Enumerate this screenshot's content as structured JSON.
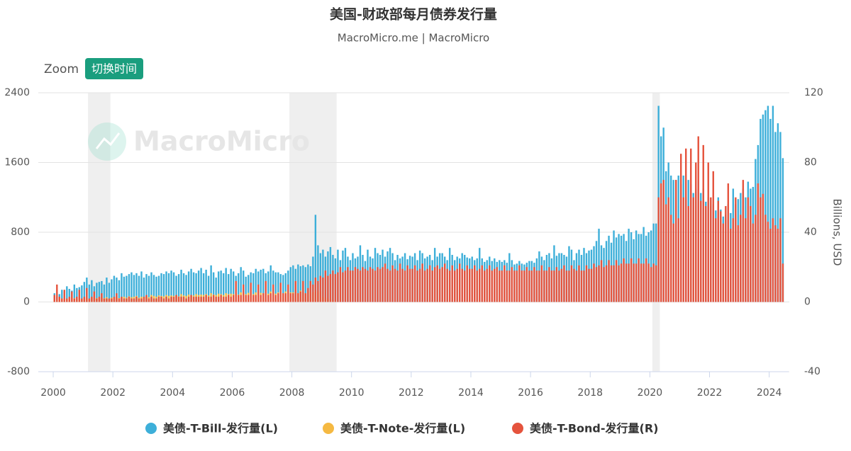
{
  "chart_data": {
    "type": "bar",
    "title": "美国-财政部每月债券发行量",
    "subtitle": "MacroMicro.me | MacroMicro",
    "watermark": "MacroMicro",
    "zoom_label": "Zoom",
    "zoom_button": "切换时间",
    "y2label": "Billions, USD",
    "legend": "bottom",
    "grid": true,
    "xlim": [
      1999.5,
      2024.65
    ],
    "xticks": [
      2000,
      2002,
      2004,
      2006,
      2008,
      2010,
      2012,
      2014,
      2016,
      2018,
      2020,
      2022,
      2024
    ],
    "ylim": [
      -800,
      2400
    ],
    "yticks": [
      -800,
      0,
      800,
      1600,
      2400
    ],
    "y2lim": [
      -40,
      120
    ],
    "y2ticks": [
      -40,
      0,
      40,
      80,
      120
    ],
    "recessions": [
      [
        "2001-03",
        "2001-11"
      ],
      [
        "2007-12",
        "2009-06"
      ],
      [
        "2020-02",
        "2020-04"
      ]
    ],
    "x": [
      "2000-01",
      "2000-02",
      "2000-03",
      "2000-04",
      "2000-05",
      "2000-06",
      "2000-07",
      "2000-08",
      "2000-09",
      "2000-10",
      "2000-11",
      "2000-12",
      "2001-01",
      "2001-02",
      "2001-03",
      "2001-04",
      "2001-05",
      "2001-06",
      "2001-07",
      "2001-08",
      "2001-09",
      "2001-10",
      "2001-11",
      "2001-12",
      "2002-01",
      "2002-02",
      "2002-03",
      "2002-04",
      "2002-05",
      "2002-06",
      "2002-07",
      "2002-08",
      "2002-09",
      "2002-10",
      "2002-11",
      "2002-12",
      "2003-01",
      "2003-02",
      "2003-03",
      "2003-04",
      "2003-05",
      "2003-06",
      "2003-07",
      "2003-08",
      "2003-09",
      "2003-10",
      "2003-11",
      "2003-12",
      "2004-01",
      "2004-02",
      "2004-03",
      "2004-04",
      "2004-05",
      "2004-06",
      "2004-07",
      "2004-08",
      "2004-09",
      "2004-10",
      "2004-11",
      "2004-12",
      "2005-01",
      "2005-02",
      "2005-03",
      "2005-04",
      "2005-05",
      "2005-06",
      "2005-07",
      "2005-08",
      "2005-09",
      "2005-10",
      "2005-11",
      "2005-12",
      "2006-01",
      "2006-02",
      "2006-03",
      "2006-04",
      "2006-05",
      "2006-06",
      "2006-07",
      "2006-08",
      "2006-09",
      "2006-10",
      "2006-11",
      "2006-12",
      "2007-01",
      "2007-02",
      "2007-03",
      "2007-04",
      "2007-05",
      "2007-06",
      "2007-07",
      "2007-08",
      "2007-09",
      "2007-10",
      "2007-11",
      "2007-12",
      "2008-01",
      "2008-02",
      "2008-03",
      "2008-04",
      "2008-05",
      "2008-06",
      "2008-07",
      "2008-08",
      "2008-09",
      "2008-10",
      "2008-11",
      "2008-12",
      "2009-01",
      "2009-02",
      "2009-03",
      "2009-04",
      "2009-05",
      "2009-06",
      "2009-07",
      "2009-08",
      "2009-09",
      "2009-10",
      "2009-11",
      "2009-12",
      "2010-01",
      "2010-02",
      "2010-03",
      "2010-04",
      "2010-05",
      "2010-06",
      "2010-07",
      "2010-08",
      "2010-09",
      "2010-10",
      "2010-11",
      "2010-12",
      "2011-01",
      "2011-02",
      "2011-03",
      "2011-04",
      "2011-05",
      "2011-06",
      "2011-07",
      "2011-08",
      "2011-09",
      "2011-10",
      "2011-11",
      "2011-12",
      "2012-01",
      "2012-02",
      "2012-03",
      "2012-04",
      "2012-05",
      "2012-06",
      "2012-07",
      "2012-08",
      "2012-09",
      "2012-10",
      "2012-11",
      "2012-12",
      "2013-01",
      "2013-02",
      "2013-03",
      "2013-04",
      "2013-05",
      "2013-06",
      "2013-07",
      "2013-08",
      "2013-09",
      "2013-10",
      "2013-11",
      "2013-12",
      "2014-01",
      "2014-02",
      "2014-03",
      "2014-04",
      "2014-05",
      "2014-06",
      "2014-07",
      "2014-08",
      "2014-09",
      "2014-10",
      "2014-11",
      "2014-12",
      "2015-01",
      "2015-02",
      "2015-03",
      "2015-04",
      "2015-05",
      "2015-06",
      "2015-07",
      "2015-08",
      "2015-09",
      "2015-10",
      "2015-11",
      "2015-12",
      "2016-01",
      "2016-02",
      "2016-03",
      "2016-04",
      "2016-05",
      "2016-06",
      "2016-07",
      "2016-08",
      "2016-09",
      "2016-10",
      "2016-11",
      "2016-12",
      "2017-01",
      "2017-02",
      "2017-03",
      "2017-04",
      "2017-05",
      "2017-06",
      "2017-07",
      "2017-08",
      "2017-09",
      "2017-10",
      "2017-11",
      "2017-12",
      "2018-01",
      "2018-02",
      "2018-03",
      "2018-04",
      "2018-05",
      "2018-06",
      "2018-07",
      "2018-08",
      "2018-09",
      "2018-10",
      "2018-11",
      "2018-12",
      "2019-01",
      "2019-02",
      "2019-03",
      "2019-04",
      "2019-05",
      "2019-06",
      "2019-07",
      "2019-08",
      "2019-09",
      "2019-10",
      "2019-11",
      "2019-12",
      "2020-01",
      "2020-02",
      "2020-03",
      "2020-04",
      "2020-05",
      "2020-06",
      "2020-07",
      "2020-08",
      "2020-09",
      "2020-10",
      "2020-11",
      "2020-12",
      "2021-01",
      "2021-02",
      "2021-03",
      "2021-04",
      "2021-05",
      "2021-06",
      "2021-07",
      "2021-08",
      "2021-09",
      "2021-10",
      "2021-11",
      "2021-12",
      "2022-01",
      "2022-02",
      "2022-03",
      "2022-04",
      "2022-05",
      "2022-06",
      "2022-07",
      "2022-08",
      "2022-09",
      "2022-10",
      "2022-11",
      "2022-12",
      "2023-01",
      "2023-02",
      "2023-03",
      "2023-04",
      "2023-05",
      "2023-06",
      "2023-07",
      "2023-08",
      "2023-09",
      "2023-10",
      "2023-11",
      "2023-12",
      "2024-01",
      "2024-02",
      "2024-03",
      "2024-04",
      "2024-05",
      "2024-06"
    ],
    "series": [
      {
        "name": "美债-T-Bill-发行量(L)",
        "color": "#3dafd9",
        "axis": "y",
        "values": [
          100,
          60,
          90,
          140,
          120,
          180,
          150,
          130,
          200,
          160,
          170,
          190,
          230,
          280,
          200,
          250,
          180,
          220,
          230,
          240,
          200,
          280,
          220,
          260,
          300,
          280,
          250,
          330,
          290,
          300,
          320,
          340,
          310,
          330,
          300,
          350,
          280,
          320,
          300,
          340,
          310,
          290,
          300,
          330,
          320,
          350,
          330,
          360,
          340,
          300,
          320,
          370,
          330,
          310,
          350,
          380,
          340,
          330,
          360,
          390,
          330,
          370,
          300,
          420,
          340,
          280,
          350,
          360,
          330,
          390,
          320,
          380,
          350,
          300,
          330,
          400,
          360,
          290,
          310,
          340,
          330,
          380,
          350,
          370,
          380,
          330,
          350,
          420,
          360,
          340,
          340,
          320,
          310,
          330,
          360,
          400,
          420,
          380,
          430,
          410,
          420,
          400,
          430,
          410,
          520,
          1000,
          650,
          560,
          600,
          520,
          580,
          630,
          540,
          500,
          600,
          480,
          590,
          620,
          520,
          480,
          560,
          500,
          520,
          650,
          540,
          470,
          600,
          520,
          500,
          620,
          560,
          540,
          600,
          520,
          580,
          620,
          560,
          480,
          540,
          500,
          520,
          560,
          490,
          530,
          520,
          560,
          480,
          590,
          560,
          500,
          520,
          540,
          480,
          620,
          520,
          560,
          560,
          520,
          480,
          620,
          540,
          480,
          520,
          500,
          560,
          540,
          510,
          500,
          520,
          480,
          500,
          620,
          500,
          460,
          480,
          520,
          470,
          500,
          460,
          480,
          460,
          480,
          450,
          560,
          480,
          430,
          440,
          470,
          440,
          430,
          450,
          470,
          470,
          450,
          500,
          580,
          520,
          480,
          540,
          560,
          500,
          650,
          530,
          560,
          560,
          540,
          520,
          640,
          600,
          480,
          560,
          600,
          540,
          620,
          560,
          590,
          600,
          640,
          700,
          840,
          650,
          620,
          700,
          760,
          680,
          820,
          740,
          780,
          760,
          780,
          700,
          840,
          800,
          720,
          820,
          780,
          780,
          860,
          760,
          800,
          820,
          900,
          900,
          2250,
          1900,
          2000,
          1500,
          1600,
          1450,
          1400,
          1400,
          1450,
          1350,
          1450,
          1200,
          1400,
          1350,
          1250,
          1300,
          1400,
          1250,
          1300,
          1150,
          1200,
          1100,
          1120,
          1050,
          1200,
          1060,
          980,
          1000,
          1120,
          1020,
          1300,
          1120,
          1180,
          1250,
          1300,
          1200,
          1380,
          1300,
          1320,
          1640,
          1800,
          2100,
          2150,
          2200,
          2250,
          2100,
          2250,
          1950,
          2050,
          1950,
          1650
        ]
      },
      {
        "name": "美债-T-Note-发行量(L)",
        "color": "#f5b942",
        "axis": "y",
        "values": [
          20,
          30,
          25,
          40,
          35,
          30,
          50,
          40,
          45,
          30,
          40,
          35,
          45,
          40,
          35,
          50,
          40,
          45,
          50,
          40,
          45,
          55,
          40,
          50,
          50,
          60,
          45,
          55,
          60,
          50,
          65,
          55,
          60,
          70,
          50,
          60,
          60,
          70,
          55,
          80,
          70,
          60,
          75,
          70,
          65,
          80,
          70,
          75,
          70,
          80,
          65,
          90,
          75,
          70,
          85,
          80,
          75,
          90,
          80,
          85,
          80,
          90,
          75,
          100,
          85,
          80,
          95,
          90,
          80,
          100,
          90,
          95,
          90,
          100,
          85,
          110,
          95,
          90,
          105,
          100,
          90,
          110,
          100,
          105,
          100,
          110,
          95,
          120,
          100,
          95,
          110,
          105,
          100,
          120,
          105,
          110,
          110,
          120,
          100,
          130,
          110,
          100,
          120,
          115,
          110,
          130,
          120,
          125,
          60,
          50,
          40,
          30,
          20,
          10,
          null,
          null,
          null,
          null,
          null,
          null,
          null,
          null,
          null,
          null,
          null,
          null,
          null,
          null,
          null,
          null,
          null,
          null,
          null,
          null,
          null,
          null,
          null,
          null,
          null,
          null,
          null,
          null,
          null,
          null,
          null,
          null,
          null,
          null,
          null,
          null,
          null,
          null,
          null,
          null,
          null,
          null,
          null,
          null,
          null,
          null,
          null,
          null,
          null,
          null,
          null,
          null,
          null,
          null,
          null,
          null,
          null,
          null,
          null,
          null,
          null,
          null,
          null,
          null,
          null,
          null,
          null,
          null,
          null,
          null,
          null,
          null,
          null,
          null,
          null,
          null,
          null,
          null,
          null,
          null,
          null,
          null,
          null,
          null,
          null,
          null,
          null,
          null,
          null,
          null,
          null,
          null,
          null,
          null,
          null,
          null,
          null,
          null,
          null,
          null,
          null,
          null,
          null,
          null,
          null,
          null,
          null,
          null,
          null,
          null,
          null,
          null,
          null,
          null,
          null,
          null,
          null,
          null,
          null,
          null,
          null,
          null,
          null,
          null,
          null,
          null,
          null,
          null,
          null,
          null,
          null,
          null,
          null,
          null,
          null,
          null,
          null,
          null,
          null,
          null,
          null,
          null,
          null,
          null,
          null,
          null,
          null,
          null,
          null,
          null,
          null,
          null,
          null,
          null,
          null,
          null,
          null,
          null,
          null,
          null,
          null,
          null,
          null,
          null,
          null,
          null,
          null,
          null,
          null,
          null,
          null,
          null,
          null,
          null,
          null,
          null,
          null,
          null,
          null,
          null
        ]
      },
      {
        "name": "美债-T-Bond-发行量(R)",
        "color": "#e5533d",
        "axis": "y2",
        "values": [
          4,
          10,
          3,
          2,
          7,
          2,
          3,
          6,
          2,
          3,
          7,
          2,
          3,
          8,
          2,
          3,
          6,
          2,
          3,
          5,
          2,
          2,
          2,
          2,
          3,
          5,
          2,
          3,
          2,
          2,
          3,
          2,
          2,
          3,
          2,
          2,
          3,
          4,
          2,
          3,
          2,
          2,
          3,
          3,
          2,
          3,
          2,
          3,
          3,
          4,
          3,
          3,
          3,
          2,
          3,
          4,
          3,
          3,
          3,
          3,
          3,
          4,
          3,
          3,
          4,
          3,
          3,
          4,
          3,
          3,
          4,
          3,
          4,
          12,
          4,
          4,
          10,
          4,
          4,
          11,
          4,
          4,
          10,
          4,
          5,
          12,
          4,
          5,
          10,
          4,
          5,
          11,
          5,
          5,
          10,
          5,
          5,
          12,
          5,
          6,
          12,
          5,
          8,
          12,
          10,
          14,
          12,
          15,
          14,
          18,
          15,
          16,
          18,
          16,
          17,
          20,
          17,
          18,
          20,
          18,
          18,
          20,
          19,
          18,
          20,
          19,
          18,
          20,
          19,
          18,
          20,
          19,
          20,
          22,
          19,
          18,
          21,
          19,
          18,
          22,
          19,
          18,
          21,
          19,
          19,
          21,
          18,
          19,
          22,
          18,
          19,
          21,
          18,
          20,
          21,
          19,
          20,
          22,
          19,
          18,
          21,
          18,
          19,
          22,
          19,
          18,
          21,
          19,
          19,
          21,
          18,
          19,
          21,
          18,
          19,
          21,
          18,
          19,
          20,
          18,
          18,
          21,
          18,
          18,
          20,
          18,
          18,
          21,
          18,
          18,
          20,
          18,
          18,
          20,
          18,
          18,
          21,
          18,
          18,
          20,
          18,
          18,
          20,
          18,
          19,
          21,
          18,
          18,
          21,
          19,
          18,
          21,
          18,
          18,
          21,
          19,
          19,
          22,
          20,
          21,
          24,
          20,
          21,
          24,
          21,
          21,
          24,
          21,
          22,
          25,
          22,
          22,
          25,
          22,
          22,
          25,
          22,
          22,
          25,
          22,
          20,
          22,
          21,
          60,
          68,
          70,
          56,
          60,
          50,
          45,
          70,
          48,
          85,
          60,
          88,
          55,
          88,
          60,
          80,
          95,
          58,
          90,
          55,
          80,
          60,
          75,
          48,
          58,
          52,
          45,
          55,
          68,
          42,
          48,
          60,
          44,
          50,
          70,
          48,
          60,
          55,
          45,
          50,
          68,
          60,
          62,
          50,
          46,
          42,
          48,
          44,
          42,
          48,
          22
        ]
      }
    ]
  }
}
